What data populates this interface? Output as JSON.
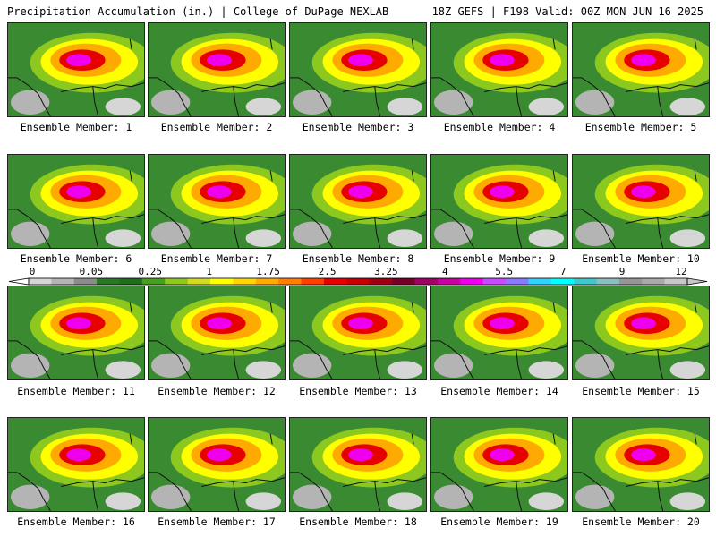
{
  "header": {
    "left": "Precipitation Accumulation (in.) | College of DuPage NEXLAB",
    "right": "18Z GEFS | F198 Valid: 00Z MON JUN 16 2025"
  },
  "colorbar": {
    "tick_labels": [
      "0",
      "0.05",
      "0.25",
      "1",
      "1.75",
      "2.5",
      "3.25",
      "4",
      "5.5",
      "7",
      "9",
      "12"
    ],
    "colors": [
      "#d6d6d6",
      "#b4b4b4",
      "#8c8c8c",
      "#287828",
      "#1e6e1e",
      "#46a01e",
      "#8cc81e",
      "#d2dc1e",
      "#ffff00",
      "#ffd700",
      "#ffaa00",
      "#ff8000",
      "#ff4000",
      "#e60000",
      "#c80000",
      "#a00014",
      "#780028",
      "#a00064",
      "#c800a0",
      "#ee00ee",
      "#c84bff",
      "#8c78ff",
      "#32d2ff",
      "#00ffff",
      "#40c8c8",
      "#8cbebe",
      "#969696",
      "#aaaaaa",
      "#c8c8c8"
    ]
  },
  "panels": [
    {
      "caption": "Ensemble Member: 1"
    },
    {
      "caption": "Ensemble Member: 2"
    },
    {
      "caption": "Ensemble Member: 3"
    },
    {
      "caption": "Ensemble Member: 4"
    },
    {
      "caption": "Ensemble Member: 5"
    },
    {
      "caption": "Ensemble Member: 6"
    },
    {
      "caption": "Ensemble Member: 7"
    },
    {
      "caption": "Ensemble Member: 8"
    },
    {
      "caption": "Ensemble Member: 9"
    },
    {
      "caption": "Ensemble Member: 10"
    },
    {
      "caption": "Ensemble Member: 11"
    },
    {
      "caption": "Ensemble Member: 12"
    },
    {
      "caption": "Ensemble Member: 13"
    },
    {
      "caption": "Ensemble Member: 14"
    },
    {
      "caption": "Ensemble Member: 15"
    },
    {
      "caption": "Ensemble Member: 16"
    },
    {
      "caption": "Ensemble Member: 17"
    },
    {
      "caption": "Ensemble Member: 18"
    },
    {
      "caption": "Ensemble Member: 19"
    },
    {
      "caption": "Ensemble Member: 20"
    }
  ]
}
